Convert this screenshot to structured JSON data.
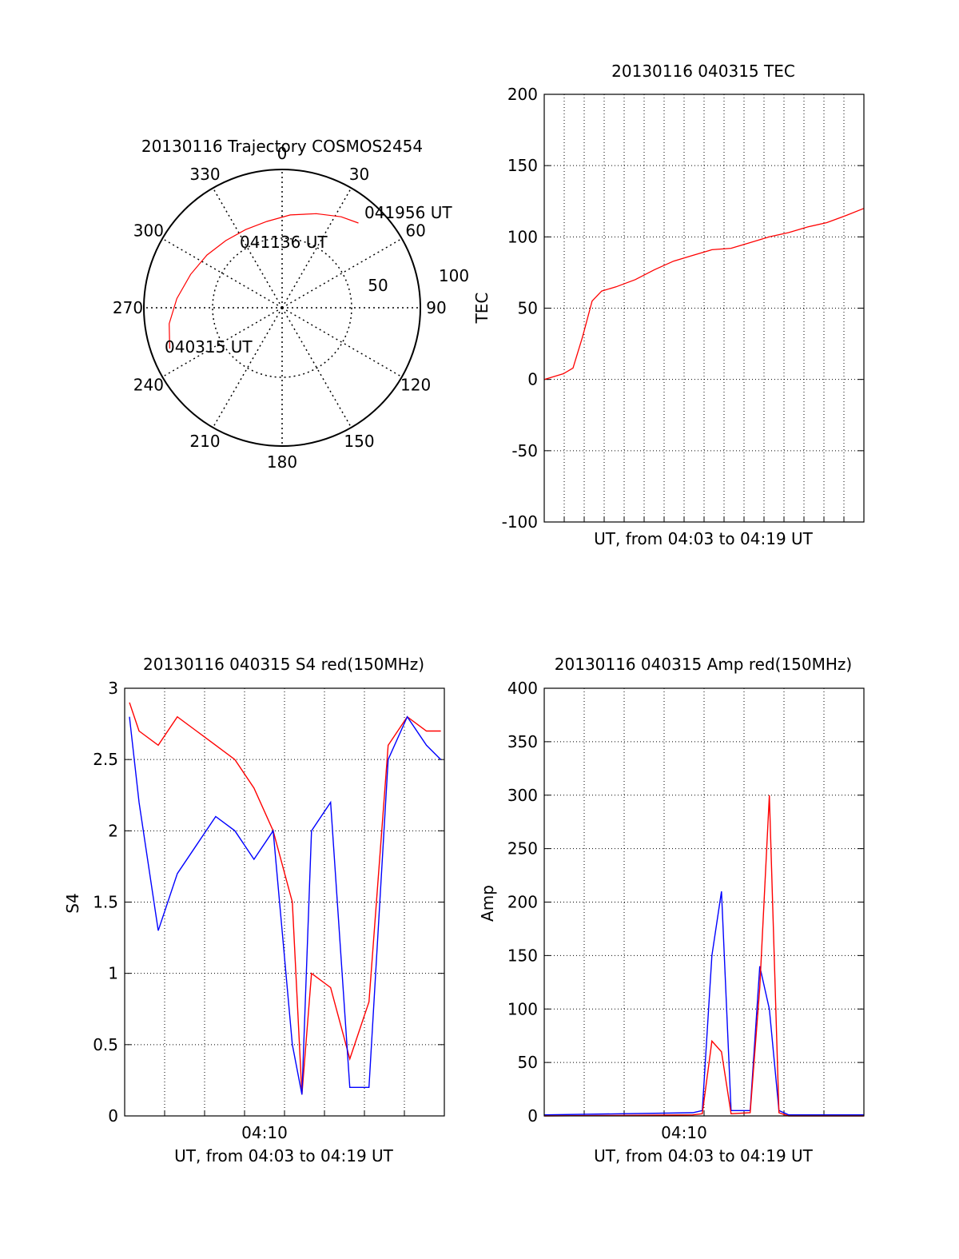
{
  "figure": {
    "polar": {
      "title": "20130116 Trajectory COSMOS2454",
      "angle_labels": [
        "0",
        "30",
        "60",
        "90",
        "120",
        "150",
        "180",
        "210",
        "240",
        "270",
        "300",
        "330"
      ],
      "radial_labels": [
        "50",
        "100"
      ],
      "annotations": [
        "041956 UT",
        "041136 UT",
        "040315 UT"
      ]
    },
    "tec": {
      "title": "20130116 040315 TEC",
      "ylabel": "TEC",
      "xlabel": "UT, from 04:03 to 04:19 UT",
      "ytick_labels": [
        "200",
        "150",
        "100",
        "50",
        "0",
        "-50",
        "-100"
      ]
    },
    "s4": {
      "title": "20130116 040315 S4 red(150MHz)",
      "ylabel": "S4",
      "xlabel": "UT, from 04:03 to 04:19 UT",
      "xtick_label": "04:10",
      "ytick_labels": [
        "3",
        "2.5",
        "2",
        "1.5",
        "1",
        "0.5",
        "0"
      ]
    },
    "amp": {
      "title": "20130116 040315 Amp red(150MHz)",
      "ylabel": "Amp",
      "xlabel": "UT, from 04:03 to 04:19 UT",
      "xtick_label": "04:10",
      "ytick_labels": [
        "400",
        "350",
        "300",
        "250",
        "200",
        "150",
        "100",
        "50",
        "0"
      ]
    }
  },
  "chart_data": [
    {
      "type": "scatter",
      "title": "20130116 Trajectory COSMOS2454",
      "projection": "polar",
      "theta_labels_deg": [
        0,
        30,
        60,
        90,
        120,
        150,
        180,
        210,
        240,
        270,
        300,
        330
      ],
      "r_labels": [
        50,
        100
      ],
      "series": [
        {
          "color": "#ff0000",
          "azimuth_deg": [
            250,
            262,
            275,
            290,
            305,
            320,
            335,
            350,
            5,
            20,
            33,
            42
          ],
          "zenith_deg": [
            86,
            82,
            76,
            70,
            66,
            63,
            62,
            63,
            67,
            72,
            78,
            82
          ]
        }
      ],
      "annotations": [
        {
          "text": "040315 UT",
          "azimuth_deg": 250,
          "zenith_deg": 86
        },
        {
          "text": "041136 UT",
          "azimuth_deg": 345,
          "zenith_deg": 50
        },
        {
          "text": "041956 UT",
          "azimuth_deg": 42,
          "zenith_deg": 82
        }
      ]
    },
    {
      "type": "line",
      "title": "20130116 040315 TEC",
      "xlabel": "UT, from 04:03 to 04:19 UT",
      "ylabel": "TEC",
      "xlim": [
        "04:03:15",
        "04:19:56"
      ],
      "ylim": [
        -100,
        200
      ],
      "yticks": [
        -100,
        -50,
        0,
        50,
        100,
        150,
        200
      ],
      "grid": true,
      "series": [
        {
          "color": "#ff0000",
          "x": [
            "04:03:15",
            "04:03:45",
            "04:04:15",
            "04:04:45",
            "04:05:15",
            "04:05:45",
            "04:06:15",
            "04:07:00",
            "04:08:00",
            "04:09:00",
            "04:10:00",
            "04:11:00",
            "04:12:00",
            "04:13:00",
            "04:14:00",
            "04:15:00",
            "04:16:00",
            "04:17:00",
            "04:18:00",
            "04:19:00",
            "04:19:56"
          ],
          "y": [
            0,
            2,
            4,
            8,
            30,
            55,
            62,
            65,
            70,
            77,
            83,
            87,
            91,
            92,
            96,
            100,
            103,
            107,
            110,
            115,
            120
          ]
        }
      ]
    },
    {
      "type": "line",
      "title": "20130116 040315 S4 red(150MHz)",
      "xlabel": "UT, from 04:03 to 04:19 UT",
      "ylabel": "S4",
      "xlim": [
        "04:03:15",
        "04:19:56"
      ],
      "ylim": [
        0,
        3
      ],
      "yticks": [
        0,
        0.5,
        1,
        1.5,
        2,
        2.5,
        3
      ],
      "xticks": [
        "04:10"
      ],
      "grid": true,
      "series": [
        {
          "color": "#0000ff",
          "x": [
            "04:03:30",
            "04:04:00",
            "04:05:00",
            "04:06:00",
            "04:07:00",
            "04:08:00",
            "04:09:00",
            "04:10:00",
            "04:11:00",
            "04:12:00",
            "04:12:30",
            "04:13:00",
            "04:14:00",
            "04:15:00",
            "04:16:00",
            "04:17:00",
            "04:18:00",
            "04:19:00",
            "04:19:45"
          ],
          "y": [
            2.8,
            2.2,
            1.3,
            1.7,
            1.9,
            2.1,
            2.0,
            1.8,
            2.0,
            0.5,
            0.15,
            2.0,
            2.2,
            0.2,
            0.2,
            2.5,
            2.8,
            2.6,
            2.5
          ]
        },
        {
          "color": "#ff0000",
          "x": [
            "04:03:30",
            "04:04:00",
            "04:05:00",
            "04:06:00",
            "04:07:00",
            "04:08:00",
            "04:09:00",
            "04:10:00",
            "04:11:00",
            "04:12:00",
            "04:12:30",
            "04:13:00",
            "04:14:00",
            "04:15:00",
            "04:16:00",
            "04:17:00",
            "04:18:00",
            "04:19:00",
            "04:19:45"
          ],
          "y": [
            2.9,
            2.7,
            2.6,
            2.8,
            2.7,
            2.6,
            2.5,
            2.3,
            2.0,
            1.5,
            0.15,
            1.0,
            0.9,
            0.4,
            0.8,
            2.6,
            2.8,
            2.7,
            2.7
          ]
        }
      ]
    },
    {
      "type": "line",
      "title": "20130116 040315 Amp red(150MHz)",
      "xlabel": "UT, from 04:03 to 04:19 UT",
      "ylabel": "Amp",
      "xlim": [
        "04:03:15",
        "04:19:56"
      ],
      "ylim": [
        0,
        400
      ],
      "yticks": [
        0,
        50,
        100,
        150,
        200,
        250,
        300,
        350,
        400
      ],
      "xticks": [
        "04:10"
      ],
      "grid": true,
      "series": [
        {
          "color": "#0000ff",
          "x": [
            "04:03:15",
            "04:11:00",
            "04:11:30",
            "04:12:00",
            "04:12:30",
            "04:13:00",
            "04:14:00",
            "04:14:30",
            "04:15:00",
            "04:15:30",
            "04:16:00",
            "04:19:56"
          ],
          "y": [
            1,
            3,
            5,
            150,
            210,
            5,
            5,
            140,
            100,
            5,
            1,
            1
          ]
        },
        {
          "color": "#ff0000",
          "x": [
            "04:03:15",
            "04:11:00",
            "04:11:30",
            "04:12:00",
            "04:12:30",
            "04:13:00",
            "04:14:00",
            "04:14:30",
            "04:15:00",
            "04:15:30",
            "04:16:00",
            "04:19:56"
          ],
          "y": [
            0,
            1,
            2,
            70,
            60,
            2,
            3,
            120,
            300,
            3,
            0,
            0
          ]
        }
      ]
    }
  ]
}
